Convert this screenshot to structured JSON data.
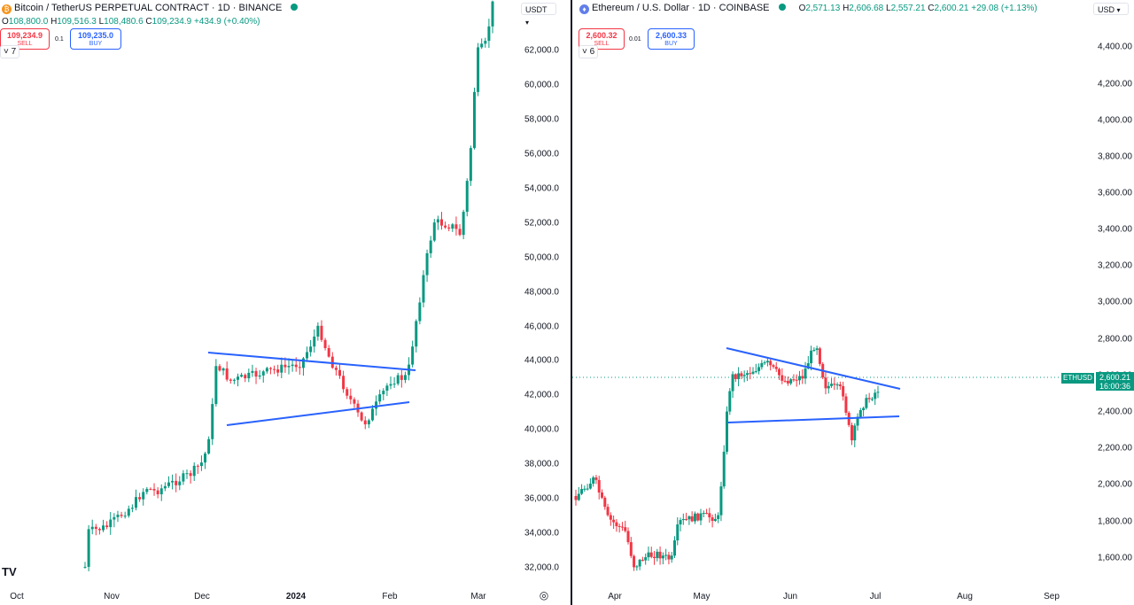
{
  "btc": {
    "icon": "bitcoin-icon",
    "title": "Bitcoin / TetherUS PERPETUAL CONTRACT · 1D · BINANCE",
    "ohlc": {
      "o_label": "O",
      "o": "108,800.0",
      "h_label": "H",
      "h": "109,516.3",
      "l_label": "L",
      "l": "108,480.6",
      "c_label": "C",
      "c": "109,234.9",
      "chg": "+434.9 (+0.40%)"
    },
    "sell_price": "109,234.9",
    "sell_label": "SELL",
    "spread": "0.1",
    "buy_price": "109,235.0",
    "buy_label": "BUY",
    "indicator_count": "7",
    "currency": "USDT",
    "y_ticks": [
      "62,000.0",
      "60,000.0",
      "58,000.0",
      "56,000.0",
      "54,000.0",
      "52,000.0",
      "50,000.0",
      "48,000.0",
      "46,000.0",
      "44,000.0",
      "42,000.0",
      "40,000.0",
      "38,000.0",
      "36,000.0",
      "34,000.0",
      "32,000.0"
    ],
    "x_ticks": [
      "Oct",
      "Nov",
      "Dec",
      "2024",
      "Feb",
      "Mar"
    ]
  },
  "eth": {
    "icon": "ethereum-icon",
    "title": "Ethereum / U.S. Dollar · 1D · COINBASE",
    "ohlc": {
      "o_label": "O",
      "o": "2,571.13",
      "h_label": "H",
      "h": "2,606.68",
      "l_label": "L",
      "l": "2,557.21",
      "c_label": "C",
      "c": "2,600.21",
      "chg": "+29.08 (+1.13%)"
    },
    "sell_price": "2,600.32",
    "sell_label": "SELL",
    "spread": "0.01",
    "buy_price": "2,600.33",
    "buy_label": "BUY",
    "indicator_count": "6",
    "currency": "USD",
    "y_ticks": [
      "4,400.00",
      "4,200.00",
      "4,000.00",
      "3,800.00",
      "3,600.00",
      "3,400.00",
      "3,200.00",
      "3,000.00",
      "2,800.00",
      "2,600.00",
      "2,400.00",
      "2,200.00",
      "2,000.00",
      "1,800.00",
      "1,600.00"
    ],
    "x_ticks": [
      "Apr",
      "May",
      "Jun",
      "Jul",
      "Aug",
      "Sep"
    ],
    "last_symbol": "ETHUSD",
    "last_price": "2,600.21",
    "countdown": "16:00:36"
  },
  "branding": {
    "logo": "TV"
  },
  "colors": {
    "up": "#089981",
    "down": "#f23645",
    "trendline": "#2962ff",
    "divider": "#131722"
  }
}
